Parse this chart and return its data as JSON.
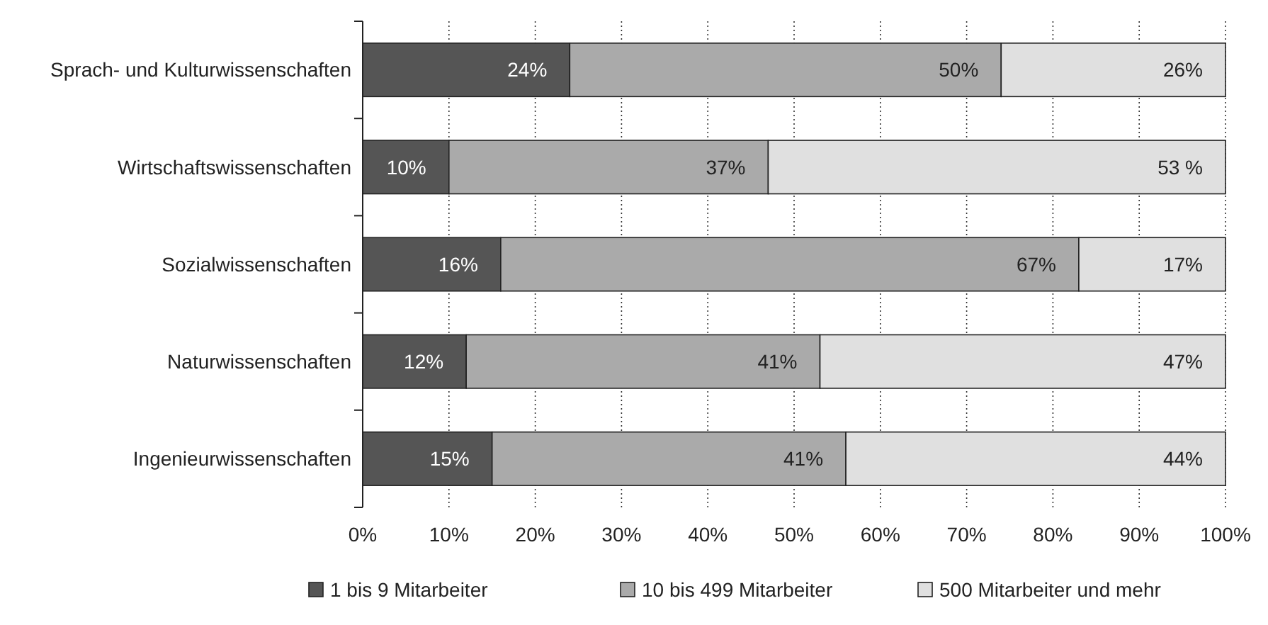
{
  "chart_data": {
    "type": "bar",
    "orientation": "horizontal",
    "stacked": true,
    "categories": [
      "Sprach- und Kulturwissenschaften",
      "Wirtschaftswissenschaften",
      "Sozialwissenschaften",
      "Naturwissenschaften",
      "Ingenieurwissenschaften"
    ],
    "series": [
      {
        "name": "1 bis 9 Mitarbeiter",
        "color": "#555555",
        "values": [
          24,
          10,
          16,
          12,
          15
        ],
        "value_labels": [
          "24%",
          "10%",
          "16%",
          "12%",
          "15%"
        ]
      },
      {
        "name": "10 bis 499 Mitarbeiter",
        "color": "#aaaaaa",
        "values": [
          50,
          37,
          67,
          41,
          41
        ],
        "value_labels": [
          "50%",
          "37%",
          "67%",
          "41%",
          "41%"
        ]
      },
      {
        "name": "500 Mitarbeiter und mehr",
        "color": "#e0e0e0",
        "values": [
          26,
          53,
          17,
          47,
          44
        ],
        "value_labels": [
          "26%",
          "53 %",
          "17%",
          "47%",
          "44%"
        ]
      }
    ],
    "xlim": [
      0,
      100
    ],
    "xticks": [
      {
        "value": 0,
        "label": "0%"
      },
      {
        "value": 10,
        "label": "10%"
      },
      {
        "value": 20,
        "label": "20%"
      },
      {
        "value": 30,
        "label": "30%"
      },
      {
        "value": 40,
        "label": "40%"
      },
      {
        "value": 50,
        "label": "50%"
      },
      {
        "value": 60,
        "label": "60%"
      },
      {
        "value": 70,
        "label": "70%"
      },
      {
        "value": 80,
        "label": "80%"
      },
      {
        "value": 90,
        "label": "90%"
      },
      {
        "value": 100,
        "label": "100%"
      }
    ],
    "grid": "x",
    "legend": "bottom"
  }
}
